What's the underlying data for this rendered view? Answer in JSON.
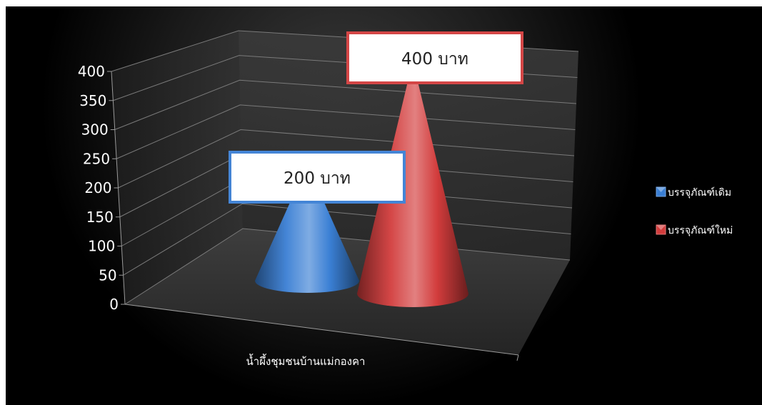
{
  "chart_data": {
    "type": "bar",
    "style": "3d-cone",
    "categories": [
      "น้ำผึ้งชุมชนบ้านแม่กองคา"
    ],
    "series": [
      {
        "name": "บรรจุภัณฑ์เดิม",
        "values": [
          200
        ],
        "color": "#3a7fd4",
        "label": "200 บาท"
      },
      {
        "name": "บรรจุภัณฑ์ใหม่",
        "values": [
          400
        ],
        "color": "#d23c3c",
        "label": "400 บาท"
      }
    ],
    "yticks": [
      "0",
      "50",
      "100",
      "150",
      "200",
      "250",
      "300",
      "350",
      "400"
    ],
    "ylim": [
      0,
      400
    ],
    "grid": true,
    "legend_position": "right",
    "background": "#000000"
  }
}
